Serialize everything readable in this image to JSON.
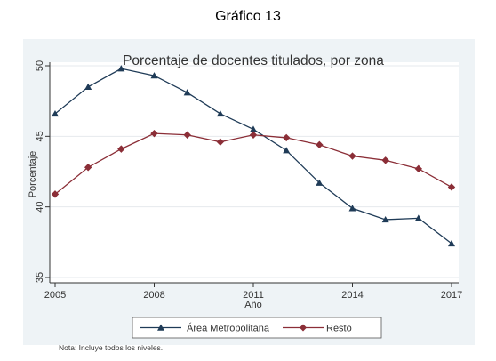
{
  "heading": "Gráfico 13",
  "note": "Nota: Incluye todos los niveles.",
  "chart_data": {
    "type": "line",
    "title": "Porcentaje de docentes titulados, por zona",
    "xlabel": "Año",
    "ylabel": "Porcentaje",
    "x": [
      2005,
      2006,
      2007,
      2008,
      2009,
      2010,
      2011,
      2012,
      2013,
      2014,
      2015,
      2016,
      2017
    ],
    "xticks": [
      2005,
      2008,
      2011,
      2014,
      2017
    ],
    "yticks": [
      35,
      40,
      45,
      50
    ],
    "xlim": [
      2005,
      2017
    ],
    "ylim": [
      35,
      50
    ],
    "grid": "horizontal",
    "legend_position": "bottom",
    "series": [
      {
        "name": "Área Metropolitana",
        "marker": "triangle",
        "color": "#1f3b57",
        "values": [
          46.6,
          48.5,
          49.8,
          49.3,
          48.1,
          46.6,
          45.5,
          44.0,
          41.7,
          39.9,
          39.1,
          39.2,
          37.4
        ]
      },
      {
        "name": "Resto",
        "marker": "diamond",
        "color": "#8b2e37",
        "values": [
          40.9,
          42.8,
          44.1,
          45.2,
          45.1,
          44.6,
          45.1,
          44.9,
          44.4,
          43.6,
          43.3,
          42.7,
          41.4
        ]
      }
    ],
    "background_color": "#eef3f6",
    "plot_color": "#ffffff"
  }
}
